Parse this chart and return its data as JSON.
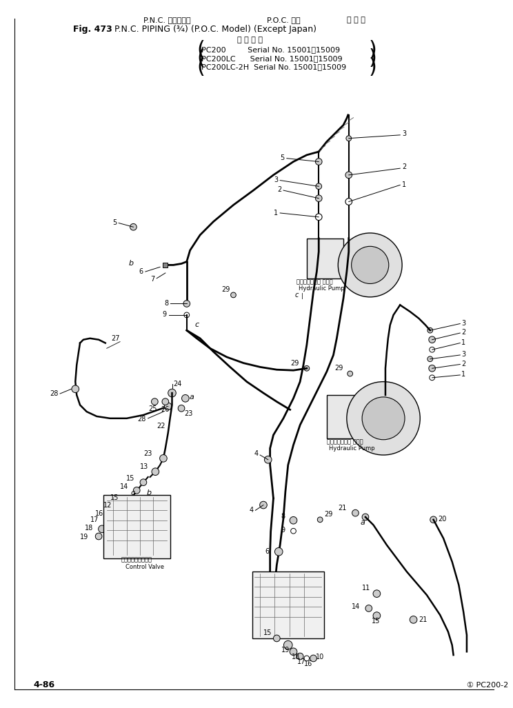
{
  "title_line1": "P.N.C. パイピング         P.O.C. 仕様         海 外 向",
  "title_line2": "Fig. 473   P.N.C. PIPING (¾) (P.O.C. Model) (Except Japan)",
  "serial_header": "適 用 号 機",
  "serial1": "PC200         Serial No. 15001～15009）",
  "serial2": "PC200LC      Serial No. 15001～15009）",
  "serial3": "PC200LC-2H  Serial No. 15001～15009）",
  "footer_left": "4-86",
  "footer_right": "① PC200-2",
  "bg_color": "#ffffff",
  "line_color": "#000000",
  "text_color": "#000000",
  "fig_width": 7.44,
  "fig_height": 10.27,
  "dpi": 100
}
